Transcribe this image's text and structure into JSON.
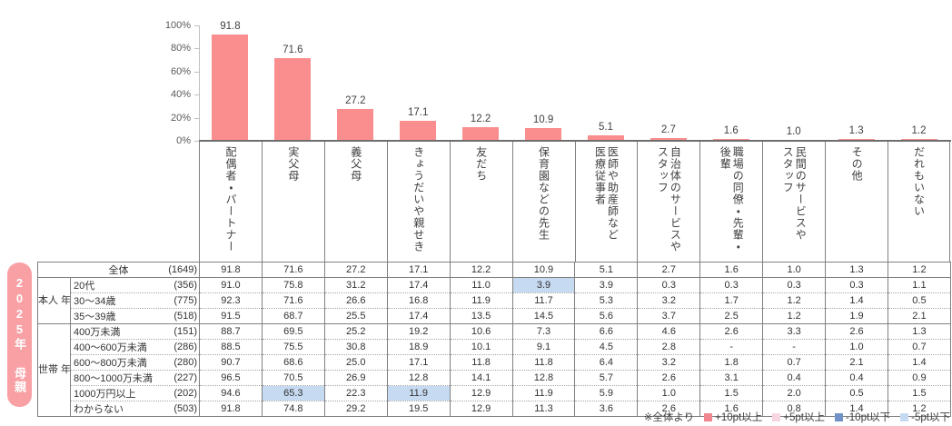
{
  "badge": {
    "label": "2025年 母親",
    "bg_color": "#F9A0A5"
  },
  "chart_data": {
    "type": "bar",
    "title": "",
    "xlabel": "",
    "ylabel": "",
    "ylim": [
      0,
      100
    ],
    "grid": false,
    "y_ticks": [
      "100%",
      "80%",
      "60%",
      "40%",
      "20%",
      "0%"
    ],
    "bar_color": "#FA8E8E",
    "categories": [
      "配偶者・パートナー",
      "実父母",
      "義父母",
      "きょうだいや親せき",
      "友だち",
      "保育園などの先生",
      "医師や助産師など\n医療従事者",
      "自治体のサービスや\nスタッフ",
      "職場の同僚・先輩・\n後輩",
      "民間のサービスや\nスタッフ",
      "その他",
      "だれもいない"
    ],
    "values": [
      91.8,
      71.6,
      27.2,
      17.1,
      12.2,
      10.9,
      5.1,
      2.7,
      1.6,
      1.0,
      1.3,
      1.2
    ]
  },
  "table": {
    "groups": [
      {
        "group_label": "",
        "rows": [
          {
            "label": "全体",
            "count": "(1649)",
            "merged": true,
            "values": [
              "91.8",
              "71.6",
              "27.2",
              "17.1",
              "12.2",
              "10.9",
              "5.1",
              "2.7",
              "1.6",
              "1.0",
              "1.3",
              "1.2"
            ]
          }
        ]
      },
      {
        "group_label": "本人\n年齢",
        "rows": [
          {
            "label": "20代",
            "count": "(356)",
            "values": [
              "91.0",
              "75.8",
              "31.2",
              "17.4",
              "11.0",
              "3.9",
              "3.9",
              "0.3",
              "0.3",
              "0.3",
              "0.3",
              "1.1"
            ],
            "highlights": {
              "5": "low5"
            }
          },
          {
            "label": "30〜34歳",
            "count": "(775)",
            "values": [
              "92.3",
              "71.6",
              "26.6",
              "16.8",
              "11.9",
              "11.7",
              "5.3",
              "3.2",
              "1.7",
              "1.2",
              "1.4",
              "0.5"
            ]
          },
          {
            "label": "35〜39歳",
            "count": "(518)",
            "values": [
              "91.5",
              "68.7",
              "25.5",
              "17.4",
              "13.5",
              "14.5",
              "5.6",
              "3.7",
              "2.5",
              "1.2",
              "1.9",
              "2.1"
            ]
          }
        ]
      },
      {
        "group_label": "世帯\n年収",
        "rows": [
          {
            "label": "400万未満",
            "count": "(151)",
            "values": [
              "88.7",
              "69.5",
              "25.2",
              "19.2",
              "10.6",
              "7.3",
              "6.6",
              "4.6",
              "2.6",
              "3.3",
              "2.6",
              "1.3"
            ]
          },
          {
            "label": "400〜600万未満",
            "count": "(286)",
            "values": [
              "88.5",
              "75.5",
              "30.8",
              "18.9",
              "10.1",
              "9.1",
              "4.5",
              "2.8",
              "-",
              "-",
              "1.0",
              "0.7"
            ]
          },
          {
            "label": "600〜800万未満",
            "count": "(280)",
            "values": [
              "90.7",
              "68.6",
              "25.0",
              "17.1",
              "11.8",
              "11.8",
              "6.4",
              "3.2",
              "1.8",
              "0.7",
              "2.1",
              "1.4"
            ]
          },
          {
            "label": "800〜1000万未満",
            "count": "(227)",
            "values": [
              "96.5",
              "70.5",
              "26.9",
              "12.8",
              "14.1",
              "12.8",
              "5.7",
              "2.6",
              "3.1",
              "0.4",
              "0.4",
              "0.9"
            ]
          },
          {
            "label": "1000万円以上",
            "count": "(202)",
            "values": [
              "94.6",
              "65.3",
              "22.3",
              "11.9",
              "12.9",
              "11.9",
              "5.9",
              "1.0",
              "1.5",
              "2.0",
              "0.5",
              "1.5"
            ],
            "highlights": {
              "1": "low5",
              "3": "low5"
            }
          },
          {
            "label": "わからない",
            "count": "(503)",
            "values": [
              "91.8",
              "74.8",
              "29.2",
              "19.5",
              "12.9",
              "11.3",
              "3.6",
              "2.6",
              "1.6",
              "0.8",
              "1.4",
              "1.2"
            ]
          }
        ]
      }
    ]
  },
  "legend": {
    "note": "※全体より",
    "items": [
      {
        "key": "high10",
        "label": "+10pt以上",
        "color": "#F0868F"
      },
      {
        "key": "high5",
        "label": "+5pt以上",
        "color": "#F8D5E2"
      },
      {
        "key": "low10",
        "label": "-10pt以下",
        "color": "#7291C6"
      },
      {
        "key": "low5",
        "label": "-5pt以下",
        "color": "#C6DAF2"
      }
    ]
  }
}
